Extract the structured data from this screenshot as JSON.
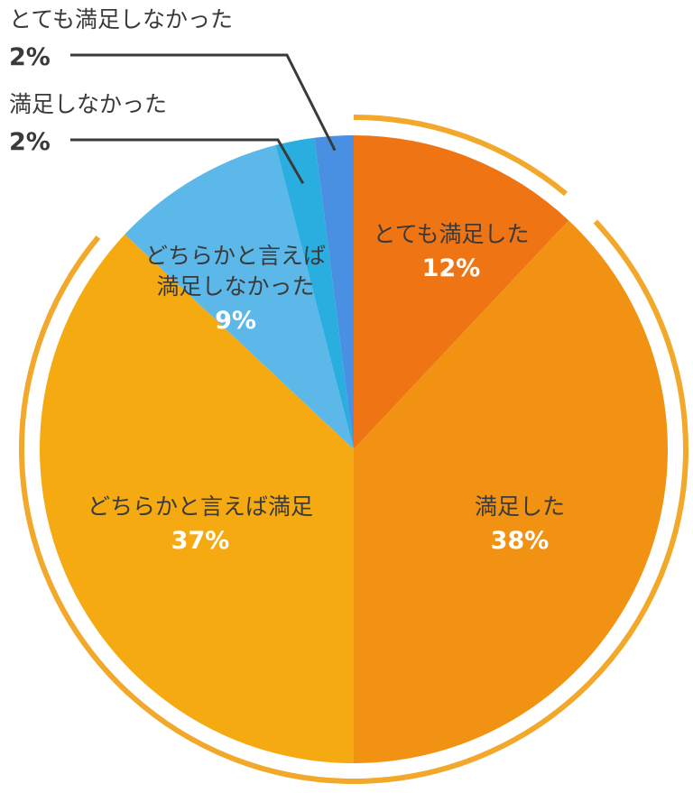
{
  "chart_data": {
    "type": "pie",
    "start_angle_deg": 0,
    "direction": "clockwise",
    "slices": [
      {
        "name": "とても満足した",
        "pct_label": "12%",
        "value": 12,
        "color": "#ef7414"
      },
      {
        "name": "満足した",
        "pct_label": "38%",
        "value": 38,
        "color": "#f29212"
      },
      {
        "name": "どちらかと言えば満足",
        "pct_label": "37%",
        "value": 37,
        "color": "#f5aa12"
      },
      {
        "name": "どちらかと言えば満足しなかった",
        "name_lines": [
          "どちらかと言えば",
          "満足しなかった"
        ],
        "pct_label": "9%",
        "value": 9,
        "color": "#5bb8e8"
      },
      {
        "name": "満足しなかった",
        "pct_label": "2%",
        "value": 2,
        "color": "#2aaee0"
      },
      {
        "name": "とても満足しなかった",
        "pct_label": "2%",
        "value": 2,
        "color": "#4a90e2"
      }
    ],
    "label_placement": {
      "inside": [
        "とても満足した",
        "満足した",
        "どちらかと言えば満足",
        "どちらかと言えば満足しなかった"
      ],
      "callout": [
        "とても満足しなかった",
        "満足しなかった"
      ]
    },
    "bracket_arcs": [
      {
        "covers": [
          "とても満足した"
        ],
        "color": "#f2a82a"
      },
      {
        "covers": [
          "満足した",
          "どちらかと言えば満足"
        ],
        "color": "#f2a82a"
      }
    ]
  }
}
